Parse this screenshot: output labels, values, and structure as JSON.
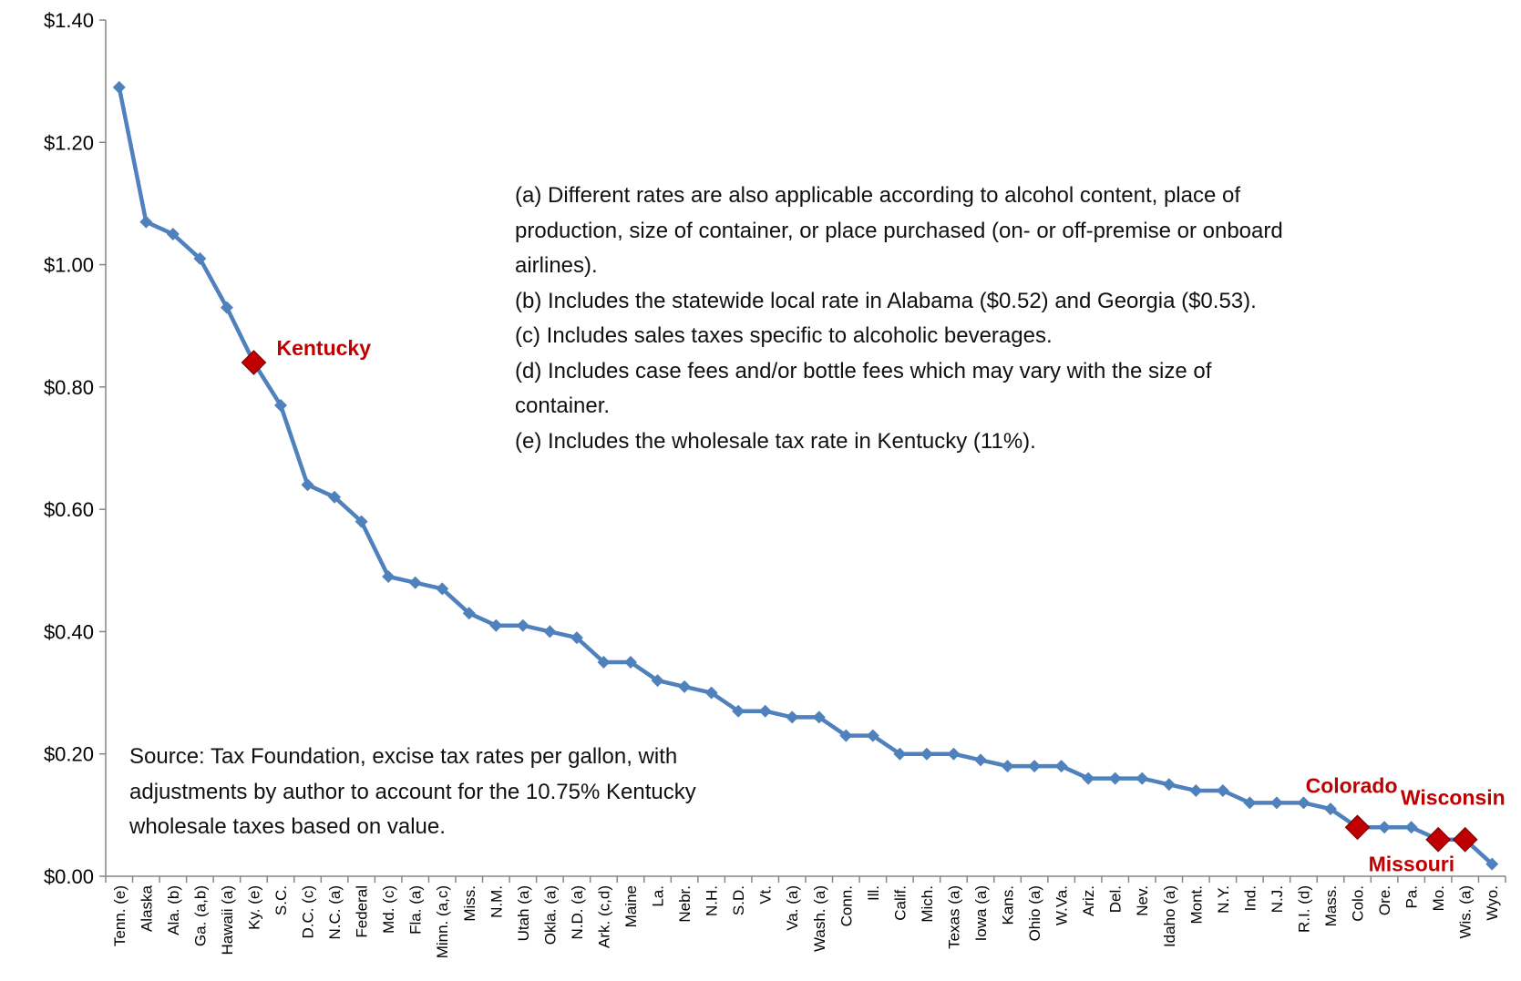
{
  "chart_data": {
    "type": "line",
    "categories": [
      "Tenn. (e)",
      "Alaska",
      "Ala. (b)",
      "Ga. (a,b)",
      "Hawaii (a)",
      "Ky. (e)",
      "S.C.",
      "D.C. (c)",
      "N.C. (a)",
      "Federal",
      "Md. (c)",
      "Fla. (a)",
      "Minn. (a,c)",
      "Miss.",
      "N.M.",
      "Utah (a)",
      "Okla. (a)",
      "N.D. (a)",
      "Ark. (c,d)",
      "Maine",
      "La.",
      "Nebr.",
      "N.H.",
      "S.D.",
      "Vt.",
      "Va. (a)",
      "Wash. (a)",
      "Conn.",
      "Ill.",
      "Calif.",
      "Mich.",
      "Texas (a)",
      "Iowa (a)",
      "Kans.",
      "Ohio (a)",
      "W.Va.",
      "Ariz.",
      "Del.",
      "Nev.",
      "Idaho (a)",
      "Mont.",
      "N.Y.",
      "Ind.",
      "N.J.",
      "R.I. (d)",
      "Mass.",
      "Colo.",
      "Ore.",
      "Pa.",
      "Mo.",
      "Wis. (a)",
      "Wyo."
    ],
    "values": [
      1.29,
      1.07,
      1.05,
      1.01,
      0.93,
      0.84,
      0.77,
      0.64,
      0.62,
      0.58,
      0.49,
      0.48,
      0.47,
      0.43,
      0.41,
      0.41,
      0.4,
      0.39,
      0.35,
      0.35,
      0.32,
      0.31,
      0.3,
      0.27,
      0.27,
      0.26,
      0.26,
      0.23,
      0.23,
      0.2,
      0.2,
      0.2,
      0.19,
      0.18,
      0.18,
      0.18,
      0.16,
      0.16,
      0.16,
      0.15,
      0.14,
      0.14,
      0.12,
      0.12,
      0.12,
      0.11,
      0.08,
      0.08,
      0.08,
      0.06,
      0.06,
      0.02
    ],
    "ylim": [
      0,
      1.4
    ],
    "yticks": [
      "$0.00",
      "$0.20",
      "$0.40",
      "$0.60",
      "$0.80",
      "$1.00",
      "$1.20",
      "$1.40"
    ],
    "grid": false,
    "legend": "none",
    "series_color": "#4f81bd",
    "highlight_color": "#c00000",
    "highlights": [
      {
        "category": "Ky. (e)",
        "label": "Kentucky",
        "label_side": "right"
      },
      {
        "category": "Colo.",
        "label": "Colorado",
        "label_side": "above-left"
      },
      {
        "category": "Mo.",
        "label": "Missouri",
        "label_side": "below-left"
      },
      {
        "category": "Wis. (a)",
        "label": "Wisconsin",
        "label_side": "above-left"
      }
    ]
  },
  "notes": [
    "(a) Different rates are also applicable according to alcohol content, place of",
    "production, size of container, or place purchased (on- or off-premise or onboard",
    "airlines).",
    "(b) Includes the statewide local rate in Alabama ($0.52) and Georgia ($0.53).",
    "(c) Includes sales taxes specific to alcoholic beverages.",
    "(d) Includes case fees and/or bottle fees which may vary with the size of",
    "container.",
    "(e) Includes the wholesale tax rate in Kentucky (11%)."
  ],
  "source_lines": [
    "Source: Tax Foundation, excise tax rates per gallon, with",
    "adjustments by author to account for the 10.75% Kentucky",
    "wholesale taxes based on value."
  ]
}
